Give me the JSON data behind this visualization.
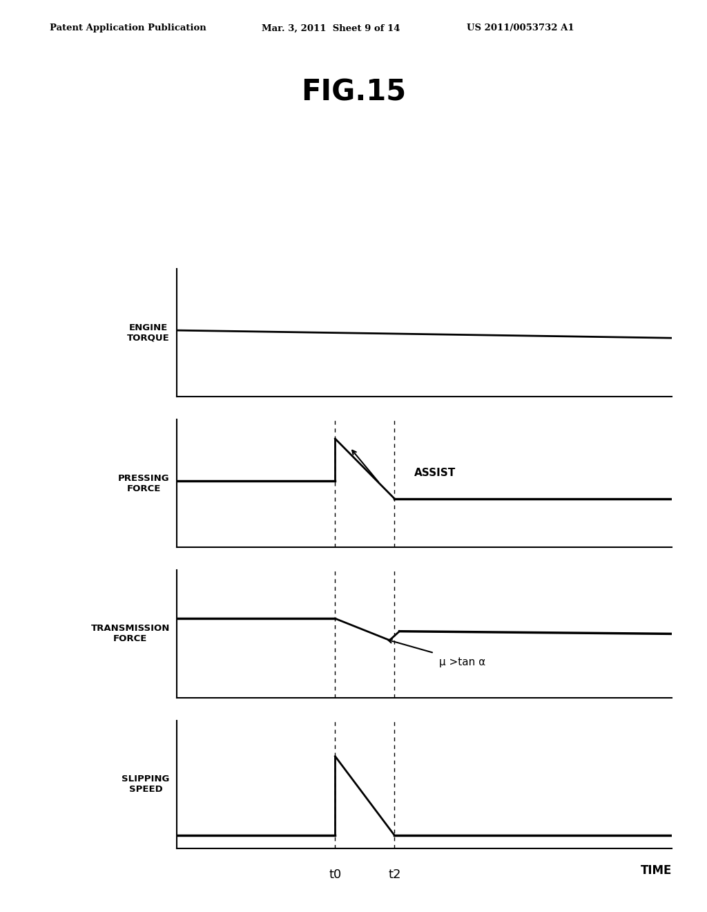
{
  "title": "FIG.15",
  "header_left": "Patent Application Publication",
  "header_mid": "Mar. 3, 2011  Sheet 9 of 14",
  "header_right": "US 2011/0053732 A1",
  "background_color": "#ffffff",
  "line_color": "#000000",
  "subplot_labels": [
    "ENGINE\nTORQUE",
    "PRESSING\nFORCE",
    "TRANSMISSION\nFORCE",
    "SLIPPING\nSPEED"
  ],
  "time_labels": [
    "t0",
    "t2"
  ],
  "time_axis_label": "TIME",
  "t0": 0.32,
  "t2": 0.44,
  "assist_label": "ASSIST",
  "mu_label": "μ >tan α"
}
